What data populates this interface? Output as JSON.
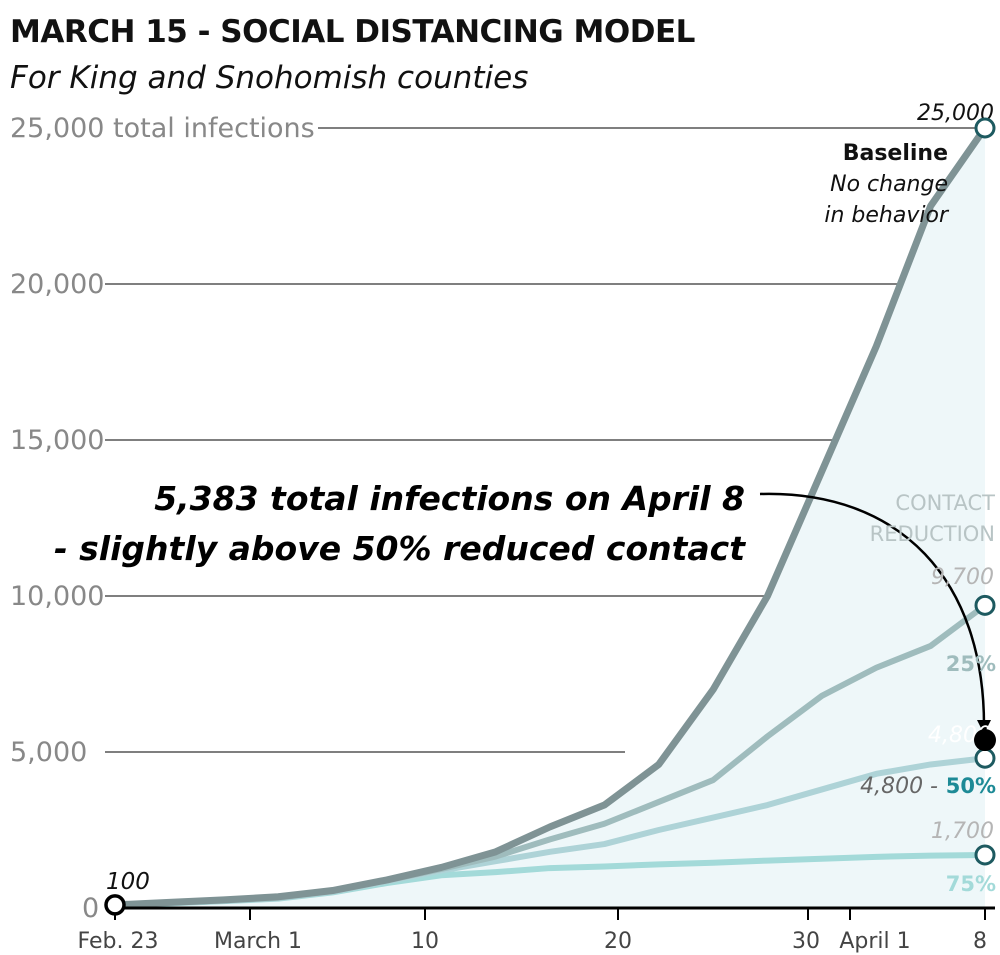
{
  "chart_data": {
    "type": "line",
    "title": "MARCH 15 - SOCIAL DISTANCING MODEL",
    "subtitle": "For King and Snohomish counties",
    "y_axis": {
      "ylim": [
        0,
        25000
      ],
      "tick_labels": [
        "0",
        "5,000",
        "10,000",
        "15,000",
        "20,000",
        "25,000 total infections"
      ]
    },
    "x_axis": {
      "start": "Feb. 23",
      "end": "April 8",
      "tick_labels": [
        "Feb. 23",
        "March 1",
        "10",
        "20",
        "30",
        "April 1",
        "8"
      ]
    },
    "series": [
      {
        "name": "Baseline",
        "color": "#7f9395",
        "values": [
          100,
          180,
          260,
          360,
          560,
          900,
          1300,
          1800,
          2600,
          3300,
          4600,
          7000,
          10000,
          14000,
          18000,
          22500,
          25000
        ]
      },
      {
        "name": "25%",
        "color": "#9fbcbd",
        "values": [
          100,
          170,
          240,
          330,
          540,
          880,
          1250,
          1650,
          2200,
          2700,
          3400,
          4100,
          5500,
          6800,
          7700,
          8400,
          9700
        ]
      },
      {
        "name": "50%",
        "color": "#aed3d7",
        "values": [
          100,
          160,
          230,
          310,
          520,
          860,
          1200,
          1500,
          1800,
          2050,
          2500,
          2900,
          3300,
          3800,
          4300,
          4600,
          4800
        ]
      },
      {
        "name": "75%",
        "color": "#a3dad9",
        "values": [
          100,
          150,
          220,
          300,
          500,
          800,
          1050,
          1150,
          1280,
          1330,
          1400,
          1450,
          1520,
          1580,
          1640,
          1680,
          1700
        ]
      }
    ],
    "x_index_dates": [
      "Feb. 23",
      "Feb. 26",
      "Feb. 29",
      "March 3",
      "March 6",
      "March 9",
      "March 12",
      "March 15",
      "March 18",
      "March 21",
      "March 24",
      "March 27",
      "March 30",
      "April 1",
      "April 4",
      "April 6",
      "April 8"
    ],
    "start_label": "100",
    "end_labels": {
      "baseline_value": "25,000",
      "baseline_name": "Baseline",
      "baseline_note_1": "No change",
      "baseline_note_2": "in behavior",
      "contact_reduction_1": "CONTACT",
      "contact_reduction_2": "REDUCTION",
      "r25_value": "9,700",
      "r25_label": "25%",
      "r50_ghost": "4,800",
      "r50_value_label": "4,800 -",
      "r50_label": "50%",
      "r75_value": "1,700",
      "r75_label": "75%"
    },
    "annotation": {
      "line1": "5,383 total infections on April 8",
      "line2": "- slightly above 50% reduced contact",
      "value": 5383
    },
    "colors": {
      "baseline": "#7f9395",
      "r25": "#9fbcbd",
      "r50": "#aed3d7",
      "r75": "#a3dad9",
      "fill": "#eef7f9",
      "marker_stroke": "#1d5a60",
      "accent_teal": "#1d8a96",
      "grid": "#555555",
      "axis_label": "#888888"
    }
  }
}
